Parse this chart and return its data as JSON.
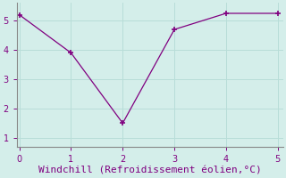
{
  "x": [
    0,
    1,
    2,
    3,
    4,
    5
  ],
  "y": [
    5.2,
    3.9,
    1.5,
    4.7,
    5.25,
    5.25
  ],
  "line_color": "#800080",
  "marker": "+",
  "marker_size": 5,
  "marker_linewidth": 1.2,
  "linewidth": 0.9,
  "xlabel": "Windchill (Refroidissement éolien,°C)",
  "xlim": [
    -0.05,
    5.1
  ],
  "ylim": [
    0.7,
    5.6
  ],
  "xticks": [
    0,
    1,
    2,
    3,
    4,
    5
  ],
  "yticks": [
    1,
    2,
    3,
    4,
    5
  ],
  "background_color": "#d4eeea",
  "grid_color": "#b8ddd8",
  "xlabel_color": "#800080",
  "tick_color": "#800080",
  "spine_color": "#888888",
  "xlabel_fontsize": 8,
  "tick_fontsize": 7
}
